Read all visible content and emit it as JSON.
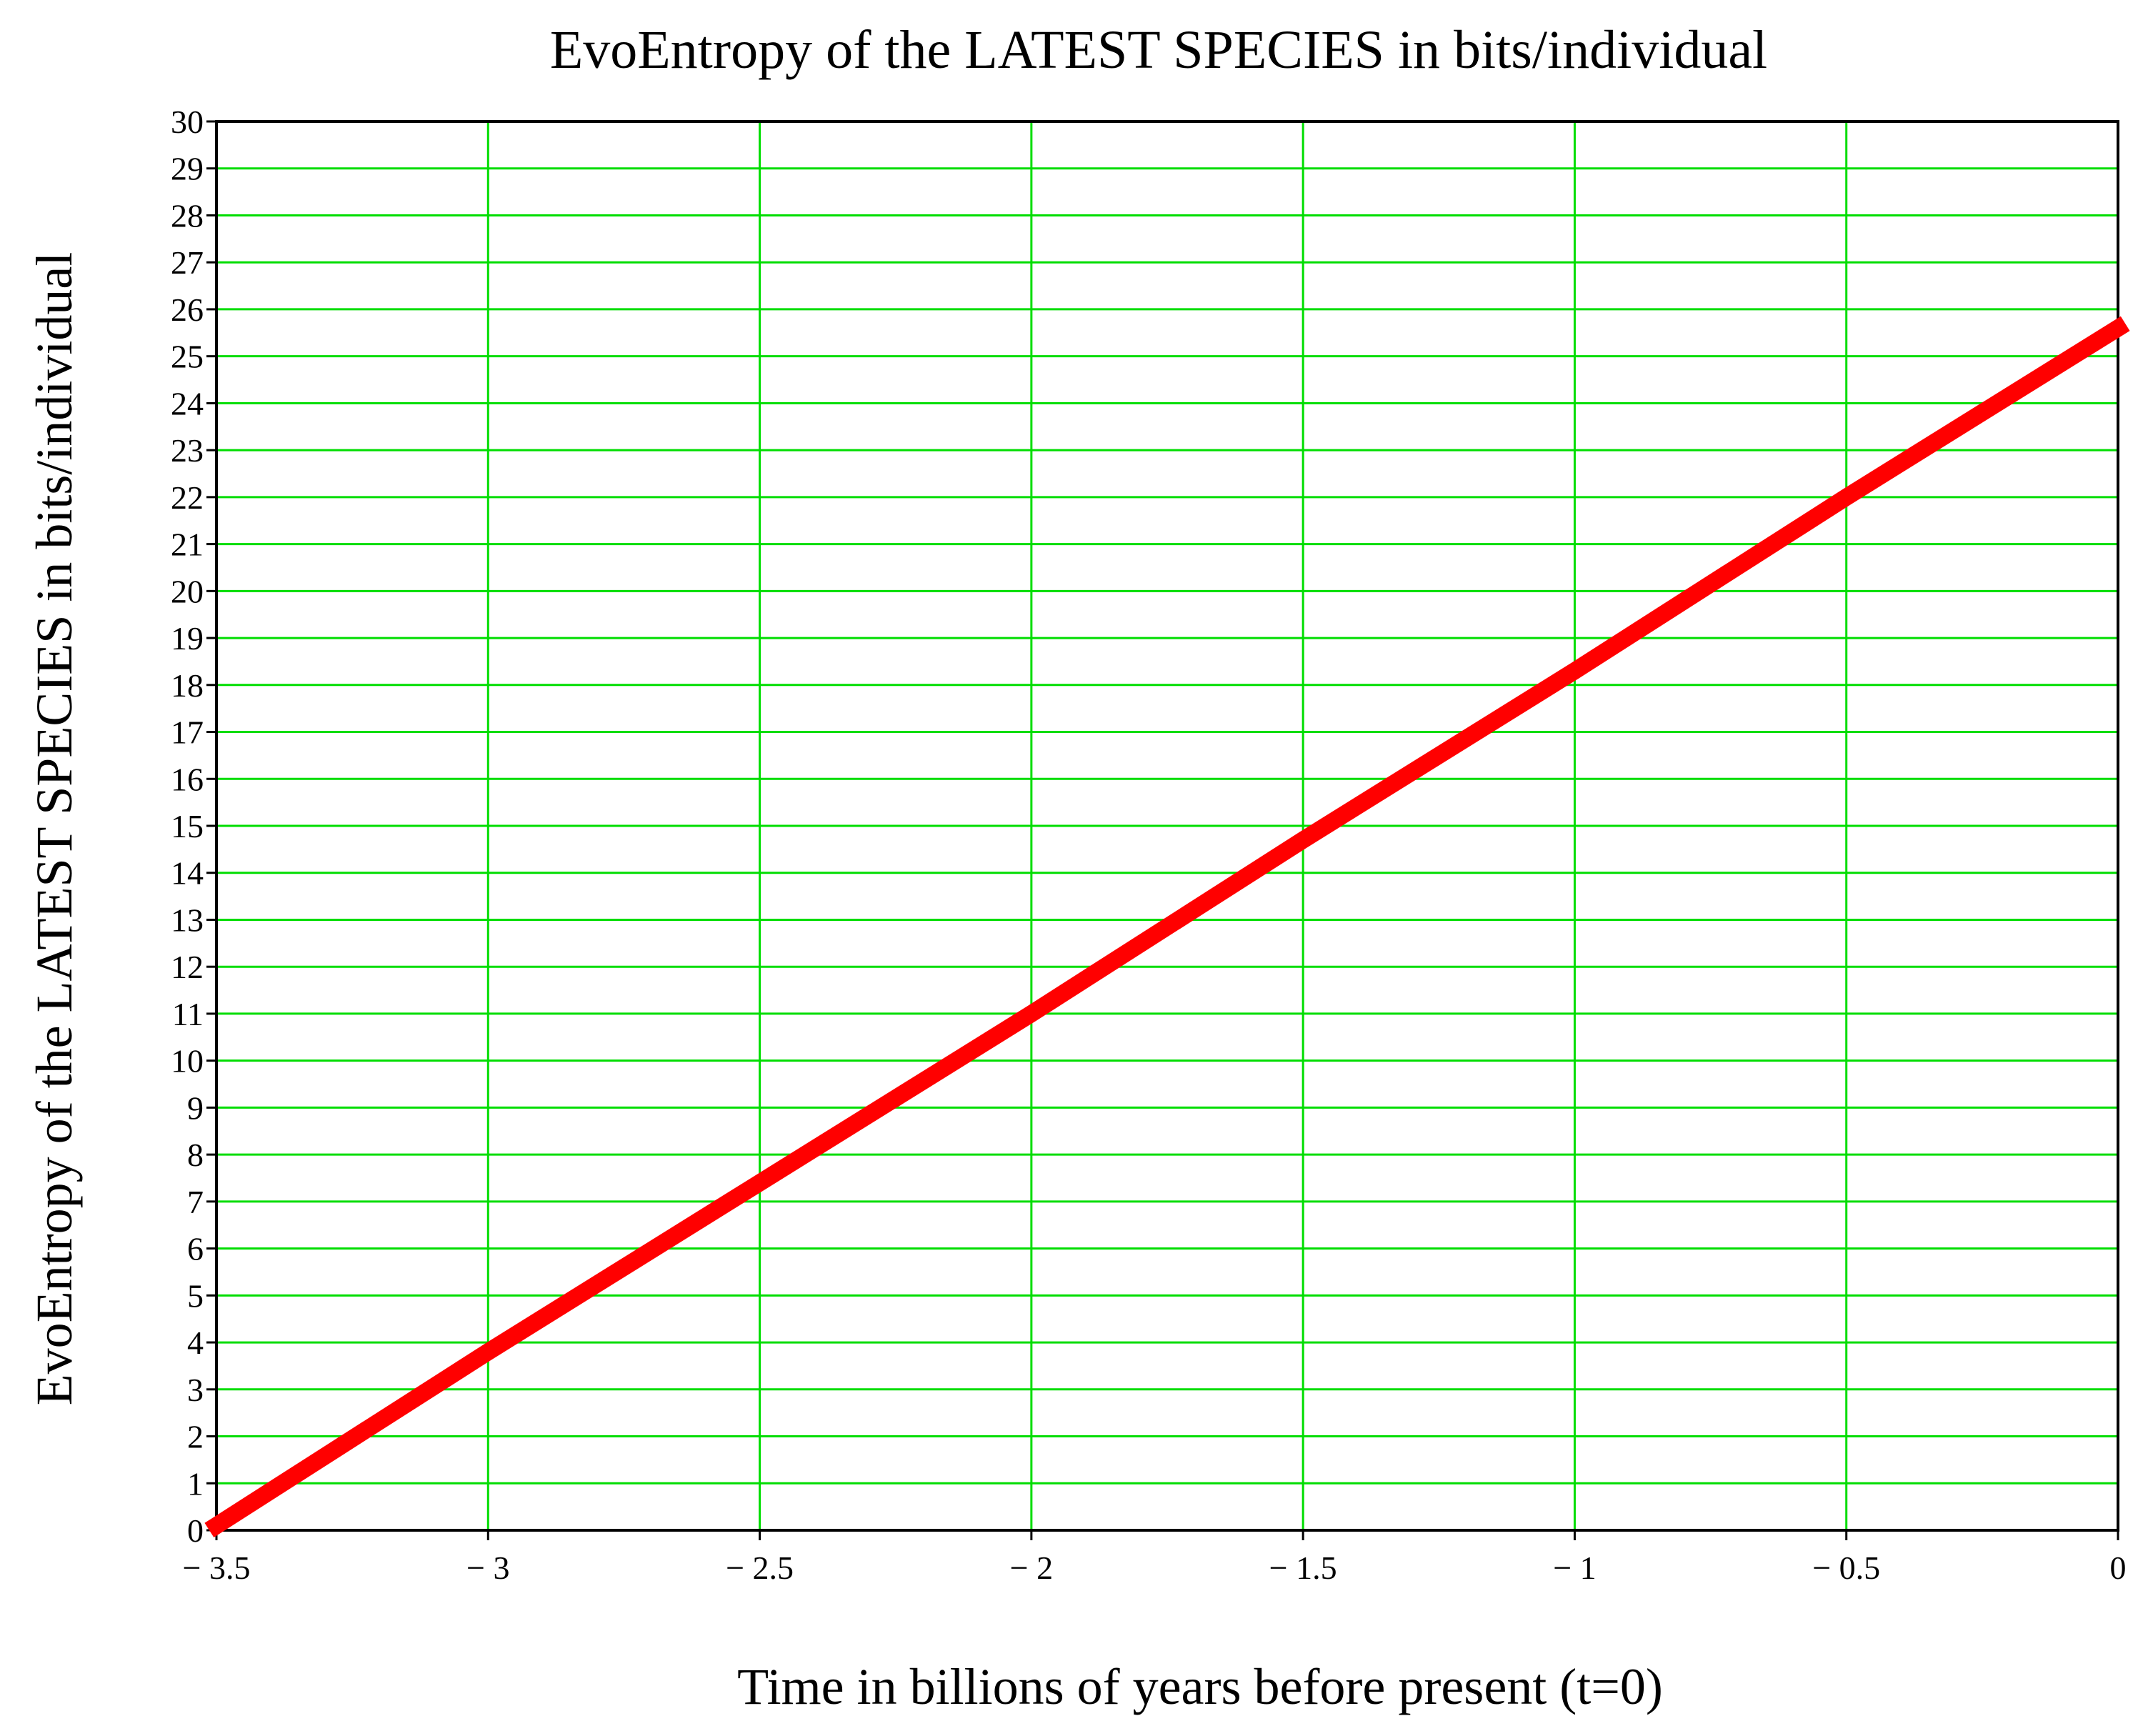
{
  "chart_data": {
    "type": "line",
    "title": "EvoEntropy of the LATEST SPECIES in bits/individual",
    "xlabel": "Time in billions of years before present (t=0)",
    "ylabel": "EvoEntropy of the LATEST SPECIES in bits/individual",
    "xlim": [
      -3.5,
      0
    ],
    "ylim": [
      0,
      30
    ],
    "x_ticks": [
      -3.5,
      -3,
      -2.5,
      -2,
      -1.5,
      -1,
      -0.5,
      0
    ],
    "x_tick_labels": [
      "− 3.5",
      "− 3",
      "− 2.5",
      "− 2",
      "− 1.5",
      "− 1",
      "− 0.5",
      "0"
    ],
    "y_ticks": [
      0,
      1,
      2,
      3,
      4,
      5,
      6,
      7,
      8,
      9,
      10,
      11,
      12,
      13,
      14,
      15,
      16,
      17,
      18,
      19,
      20,
      21,
      22,
      23,
      24,
      25,
      26,
      27,
      28,
      29,
      30
    ],
    "y_tick_labels": [
      "0",
      "1",
      "2",
      "3",
      "4",
      "5",
      "6",
      "7",
      "8",
      "9",
      "10",
      "11",
      "12",
      "13",
      "14",
      "15",
      "16",
      "17",
      "18",
      "19",
      "20",
      "21",
      "22",
      "23",
      "24",
      "25",
      "26",
      "27",
      "28",
      "29",
      "30"
    ],
    "grid": true,
    "grid_color": "#00dd00",
    "series": [
      {
        "color": "#ff0000",
        "x": [
          -3.5,
          -3,
          -2.5,
          -2,
          -1.5,
          -1,
          -0.5,
          0
        ],
        "y": [
          0.1,
          3.8,
          7.4,
          11.0,
          14.7,
          18.3,
          22.0,
          25.6
        ]
      }
    ]
  }
}
